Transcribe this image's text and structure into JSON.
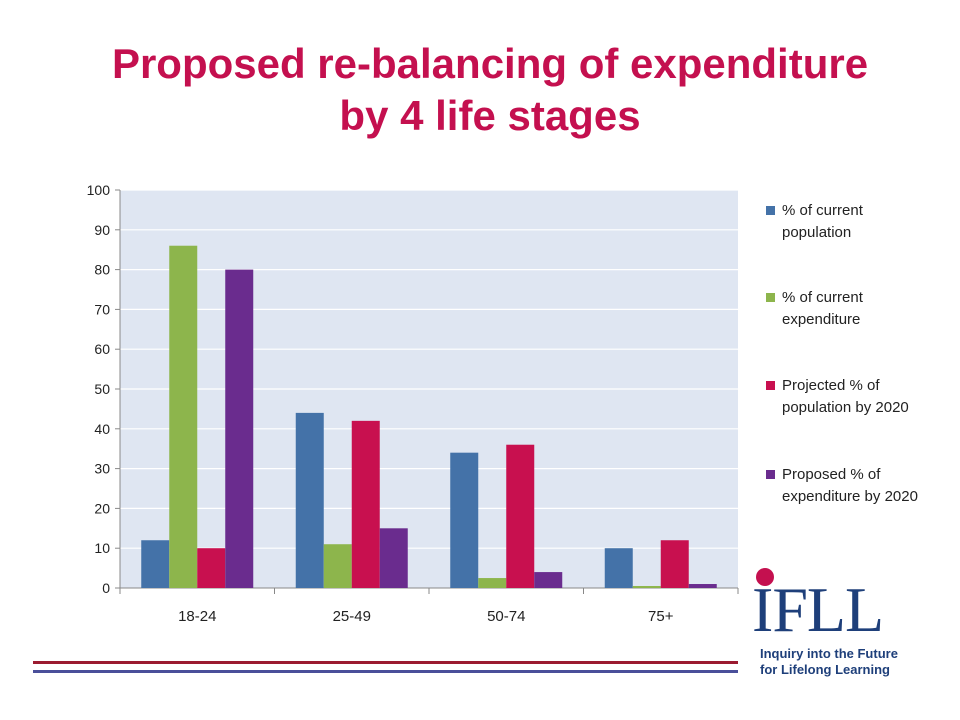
{
  "title_line1": "Proposed re-balancing of expenditure",
  "title_line2": "by 4 life stages",
  "colors": {
    "title": "#c4104f",
    "plot_bg": "#dfe6f2",
    "logo_blue": "#1e3f7a",
    "logo_red": "#c4104f",
    "footer_red": "#9b1b30",
    "footer_blue": "#4a4f9a"
  },
  "chart_data": {
    "type": "bar",
    "categories": [
      "18-24",
      "25-49",
      "50-74",
      "75+"
    ],
    "series": [
      {
        "name": "% of current population",
        "color": "#4472a8",
        "values": [
          12,
          44,
          34,
          10
        ]
      },
      {
        "name": "% of current expenditure",
        "color": "#8db54c",
        "values": [
          86,
          11,
          2.5,
          0.5
        ]
      },
      {
        "name": "Projected % of population by 2020",
        "color": "#c8104f",
        "values": [
          10,
          42,
          36,
          12
        ]
      },
      {
        "name": "Proposed % of expenditure by 2020",
        "color": "#6a2c8e",
        "values": [
          80,
          15,
          4,
          1
        ]
      }
    ],
    "ylim": [
      0,
      100
    ],
    "yticks": [
      0,
      10,
      20,
      30,
      40,
      50,
      60,
      70,
      80,
      90,
      100
    ],
    "grid": true,
    "legend_position": "right"
  },
  "logo": {
    "letters": "IFLL",
    "subtitle_line1": "Inquiry into the Future",
    "subtitle_line2": "for Lifelong Learning",
    "icon": "ifll-logo"
  }
}
